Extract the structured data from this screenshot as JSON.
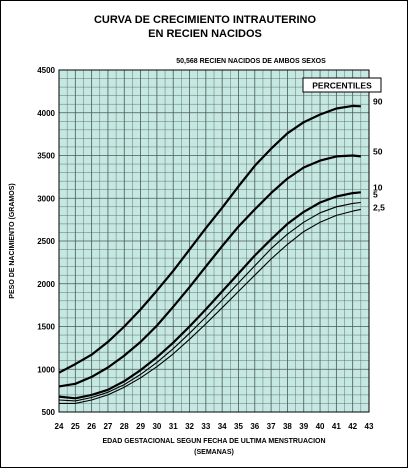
{
  "chart_data": {
    "type": "line",
    "title": [
      "CURVA DE CRECIMIENTO INTRAUTERINO",
      "EN RECIEN NACIDOS"
    ],
    "subtitle": "50,568 RECIEN NACIDOS DE AMBOS SEXOS",
    "xlabel": [
      "EDAD GESTACIONAL SEGUN FECHA DE ULTIMA MENSTRUACION",
      "(SEMANAS)"
    ],
    "ylabel": "PESO DE NACIMIENTO (GRAMOS)",
    "xlim": [
      24,
      43
    ],
    "ylim": [
      500,
      4500
    ],
    "x_ticks": [
      24,
      25,
      26,
      27,
      28,
      29,
      30,
      31,
      32,
      33,
      34,
      35,
      36,
      37,
      38,
      39,
      40,
      41,
      42,
      43
    ],
    "y_ticks": [
      500,
      1000,
      1500,
      2000,
      2500,
      3000,
      3500,
      4000,
      4500
    ],
    "grid": true,
    "background_color": "#c6e8e2",
    "legend_title": "PERCENTILES",
    "x": [
      24,
      25,
      26,
      27,
      28,
      29,
      30,
      31,
      32,
      33,
      34,
      35,
      36,
      37,
      38,
      39,
      40,
      41,
      42,
      42.5
    ],
    "series": [
      {
        "name": "90",
        "label": "90",
        "bold": true,
        "values": [
          960,
          1060,
          1170,
          1320,
          1500,
          1700,
          1920,
          2150,
          2400,
          2650,
          2890,
          3140,
          3380,
          3580,
          3760,
          3890,
          3980,
          4050,
          4080,
          4075
        ]
      },
      {
        "name": "50",
        "label": "50",
        "bold": true,
        "values": [
          800,
          830,
          910,
          1020,
          1160,
          1320,
          1510,
          1730,
          1960,
          2200,
          2440,
          2670,
          2870,
          3060,
          3230,
          3360,
          3440,
          3490,
          3500,
          3490
        ]
      },
      {
        "name": "10",
        "label": "10",
        "bold": true,
        "values": [
          680,
          660,
          700,
          760,
          860,
          990,
          1140,
          1310,
          1500,
          1700,
          1910,
          2120,
          2330,
          2520,
          2700,
          2840,
          2950,
          3020,
          3060,
          3070
        ]
      },
      {
        "name": "5",
        "label": "5",
        "bold": false,
        "values": [
          640,
          630,
          670,
          730,
          820,
          940,
          1080,
          1240,
          1420,
          1610,
          1810,
          2010,
          2210,
          2410,
          2580,
          2720,
          2830,
          2900,
          2940,
          2950
        ]
      },
      {
        "name": "2,5",
        "label": "2,5",
        "bold": false,
        "values": [
          600,
          600,
          640,
          700,
          790,
          900,
          1030,
          1180,
          1350,
          1530,
          1720,
          1910,
          2100,
          2290,
          2460,
          2610,
          2720,
          2800,
          2850,
          2870
        ]
      }
    ]
  }
}
